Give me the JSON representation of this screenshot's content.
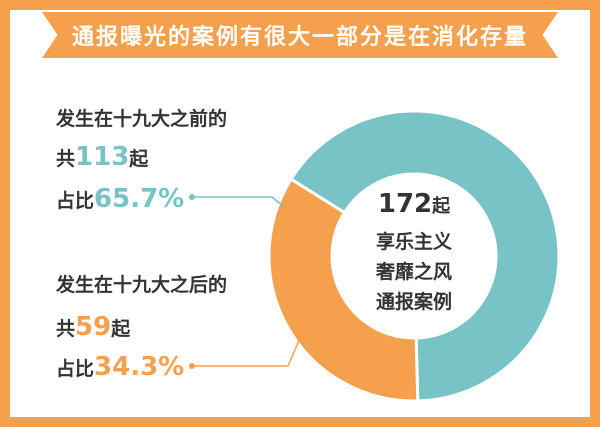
{
  "title": "通报曝光的案例有很大一部分是在消化存量",
  "colors": {
    "frame": "#f4a04c",
    "teal": "#77c3c6",
    "orange": "#f4a04c",
    "text": "#333333"
  },
  "before": {
    "line1": "发生在十九大之前的",
    "count_prefix": "共",
    "count": "113",
    "count_suffix": "起",
    "pct_prefix": "占比",
    "pct": "65.7%"
  },
  "after": {
    "line1": "发生在十九大之后的",
    "count_prefix": "共",
    "count": "59",
    "count_suffix": "起",
    "pct_prefix": "占比",
    "pct": "34.3%"
  },
  "center": {
    "total": "172",
    "unit": "起",
    "line1": "享乐主义",
    "line2": "奢靡之风",
    "line3": "通报案例"
  },
  "chart_data": {
    "type": "pie",
    "categories": [
      "发生在十九大之前的",
      "发生在十九大之后的"
    ],
    "values": [
      113,
      59
    ],
    "percentages": [
      65.7,
      34.3
    ],
    "total": 172,
    "colors": [
      "#77c3c6",
      "#f4a04c"
    ]
  }
}
